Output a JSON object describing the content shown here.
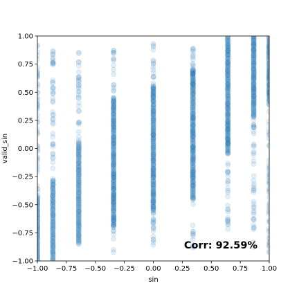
{
  "chart_data": {
    "type": "scatter",
    "title": "",
    "xlabel": "sin",
    "ylabel": "valid_sin",
    "xlim": [
      -1.0,
      1.0
    ],
    "ylim": [
      -1.0,
      1.0
    ],
    "x_ticks": [
      "−1.00",
      "−0.75",
      "−0.50",
      "−0.25",
      "0.00",
      "0.25",
      "0.50",
      "0.75",
      "1.00"
    ],
    "y_ticks": [
      "−1.00",
      "−0.75",
      "−0.50",
      "−0.25",
      "0.00",
      "0.25",
      "0.50",
      "0.75",
      "1.00"
    ],
    "grid": false,
    "legend": "none",
    "marker_color": "#1f77b4",
    "marker_alpha": 0.12,
    "annotation": "Corr: 92.59%",
    "columns": [
      {
        "x": -1.0,
        "dense_range": [
          -1.0,
          -0.42
        ],
        "sparse_range": [
          -0.42,
          0.95
        ]
      },
      {
        "x": -0.866,
        "dense_range": [
          -1.0,
          -0.28
        ],
        "sparse_range": [
          -0.28,
          0.88
        ]
      },
      {
        "x": -0.643,
        "dense_range": [
          -0.85,
          0.05
        ],
        "sparse_range": [
          0.05,
          0.92
        ]
      },
      {
        "x": -0.342,
        "dense_range": [
          -0.7,
          0.45
        ],
        "sparse_range": [
          -0.93,
          0.88
        ]
      },
      {
        "x": 0.0,
        "dense_range": [
          -0.55,
          0.55
        ],
        "sparse_range": [
          -0.86,
          0.95
        ]
      },
      {
        "x": 0.342,
        "dense_range": [
          -0.45,
          0.7
        ],
        "sparse_range": [
          -0.93,
          0.93
        ]
      },
      {
        "x": 0.643,
        "dense_range": [
          -0.05,
          1.0
        ],
        "sparse_range": [
          -0.72,
          1.0
        ]
      },
      {
        "x": 0.866,
        "dense_range": [
          0.28,
          1.0
        ],
        "sparse_range": [
          -0.88,
          1.0
        ]
      },
      {
        "x": 1.0,
        "dense_range": [
          0.42,
          1.0
        ],
        "sparse_range": [
          -0.95,
          1.0
        ]
      }
    ]
  }
}
